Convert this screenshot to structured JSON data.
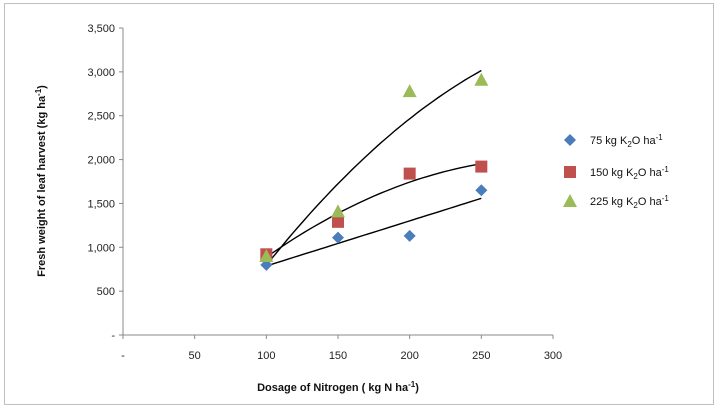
{
  "chart_data": {
    "type": "scatter",
    "title": "",
    "xlabel": "Dosage of Nitrogen ( kg N ha",
    "xlabel_sup": "-1",
    "xlabel_suffix": ")",
    "ylabel": "Fresh weight of leaf harvest (kg ha",
    "ylabel_sup": "-1",
    "ylabel_suffix": ")",
    "xlim": [
      0,
      300
    ],
    "ylim": [
      0,
      3500
    ],
    "x_ticks": [
      "-",
      "50",
      "100",
      "150",
      "200",
      "250",
      "300"
    ],
    "y_ticks": [
      "-",
      "500",
      "1,000",
      "1,500",
      "2,000",
      "2,500",
      "3,000",
      "3,500"
    ],
    "grid": false,
    "legend_position": "right",
    "series": [
      {
        "name_prefix": "75  kg K",
        "name_sub": "2",
        "name_mid": "O ha",
        "name_sup": "-1",
        "marker": "diamond",
        "color": "#4a7ebb",
        "x": [
          100,
          150,
          200,
          250
        ],
        "y": [
          800,
          1110,
          1130,
          1650
        ],
        "trend": "linear"
      },
      {
        "name_prefix": "150  kg K",
        "name_sub": "2",
        "name_mid": "O ha",
        "name_sup": "-1",
        "marker": "square",
        "color": "#c0504d",
        "x": [
          100,
          150,
          200,
          250
        ],
        "y": [
          920,
          1290,
          1840,
          1920
        ],
        "trend": "quadratic"
      },
      {
        "name_prefix": "225  kg K",
        "name_sub": "2",
        "name_mid": "O ha",
        "name_sup": "-1",
        "marker": "triangle",
        "color": "#9bbb59",
        "x": [
          100,
          150,
          200,
          250
        ],
        "y": [
          900,
          1410,
          2780,
          2910
        ],
        "trend": "quadratic"
      }
    ]
  }
}
